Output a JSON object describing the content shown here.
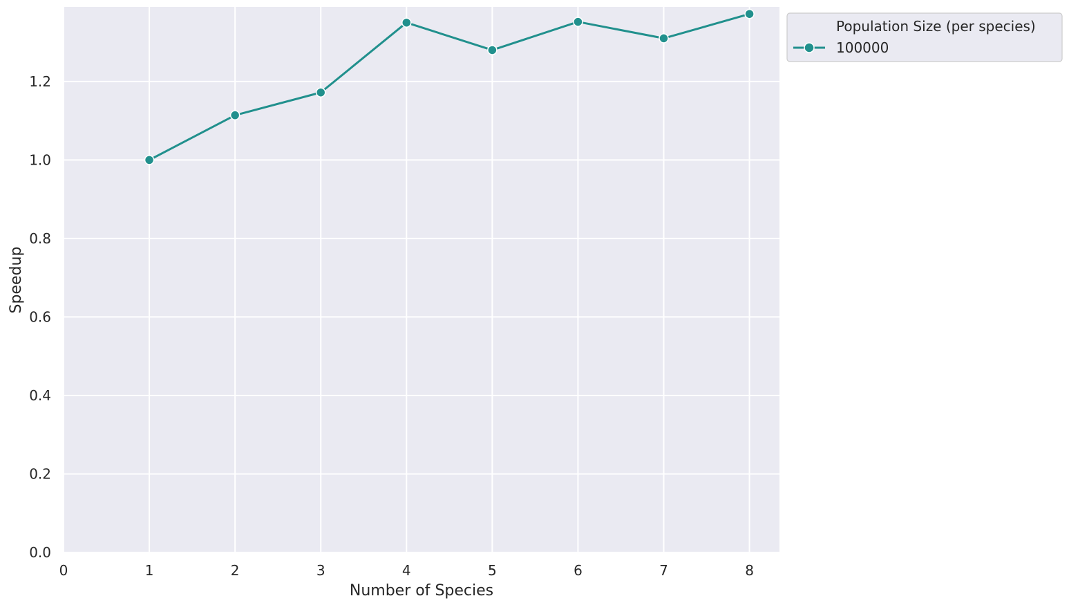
{
  "chart_data": {
    "type": "line",
    "title": "",
    "xlabel": "Number of Species",
    "ylabel": "Speedup",
    "xlim": [
      0,
      8.35
    ],
    "ylim": [
      0,
      1.39
    ],
    "x_ticks": [
      0,
      1,
      2,
      3,
      4,
      5,
      6,
      7,
      8
    ],
    "y_ticks": [
      0.0,
      0.2,
      0.4,
      0.6,
      0.8,
      1.0,
      1.2
    ],
    "grid": true,
    "legend": {
      "title": "Population Size (per species)",
      "placement": "outside-top-right"
    },
    "series": [
      {
        "name": "100000",
        "color": "#21908d",
        "marker": "circle",
        "x": [
          1,
          2,
          3,
          4,
          5,
          6,
          7,
          8
        ],
        "y": [
          1.0,
          1.114,
          1.172,
          1.35,
          1.28,
          1.352,
          1.31,
          1.372
        ]
      }
    ]
  },
  "colors": {
    "plot_background": "#eaeaf2",
    "grid": "#ffffff",
    "text": "#262626"
  }
}
